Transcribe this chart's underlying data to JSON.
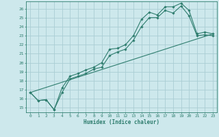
{
  "xlabel": "Humidex (Indice chaleur)",
  "xlim": [
    -0.5,
    23.5
  ],
  "ylim": [
    14.5,
    26.8
  ],
  "xticks": [
    0,
    1,
    2,
    3,
    4,
    5,
    6,
    7,
    8,
    9,
    10,
    11,
    12,
    13,
    14,
    15,
    16,
    17,
    18,
    19,
    20,
    21,
    22,
    23
  ],
  "yticks": [
    15,
    16,
    17,
    18,
    19,
    20,
    21,
    22,
    23,
    24,
    25,
    26
  ],
  "bg_color": "#cde8ec",
  "grid_color": "#aacdd4",
  "line_color": "#2e7d6e",
  "line1_x": [
    0,
    1,
    2,
    3,
    4,
    5,
    6,
    7,
    8,
    9,
    10,
    11,
    12,
    13,
    14,
    15,
    16,
    17,
    18,
    19,
    20,
    21,
    22,
    23
  ],
  "line1_y": [
    16.7,
    15.8,
    15.9,
    14.8,
    17.2,
    18.5,
    18.8,
    19.2,
    19.5,
    20.0,
    21.5,
    21.6,
    22.0,
    23.0,
    24.8,
    25.6,
    25.3,
    26.2,
    26.2,
    26.6,
    25.8,
    23.2,
    23.4,
    23.2
  ],
  "line2_x": [
    0,
    1,
    2,
    3,
    4,
    5,
    6,
    7,
    8,
    9,
    10,
    11,
    12,
    13,
    14,
    15,
    16,
    17,
    18,
    19,
    20,
    21,
    22,
    23
  ],
  "line2_y": [
    16.7,
    15.8,
    15.9,
    14.8,
    16.7,
    18.2,
    18.5,
    18.8,
    19.3,
    19.5,
    20.8,
    21.2,
    21.5,
    22.5,
    24.0,
    25.0,
    25.0,
    25.8,
    25.5,
    26.3,
    25.2,
    23.0,
    23.1,
    23.0
  ],
  "line3_x": [
    0,
    23
  ],
  "line3_y": [
    16.7,
    23.2
  ]
}
